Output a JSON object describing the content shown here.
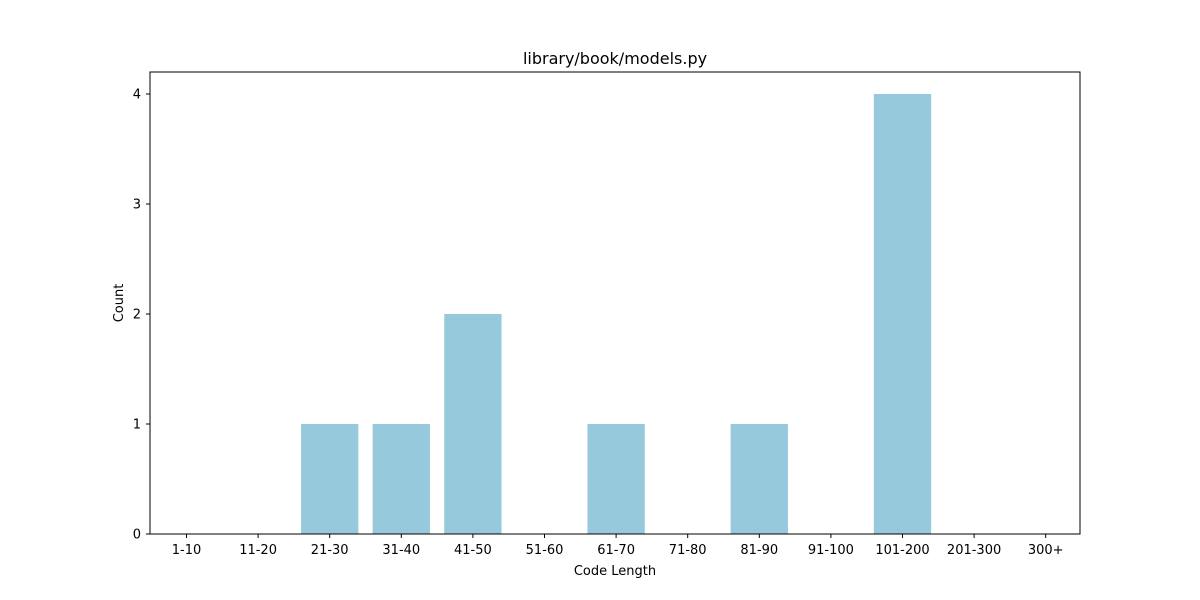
{
  "chart_data": {
    "type": "bar",
    "title": "library/book/models.py",
    "xlabel": "Code Length",
    "ylabel": "Count",
    "categories": [
      "1-10",
      "11-20",
      "21-30",
      "31-40",
      "41-50",
      "51-60",
      "61-70",
      "71-80",
      "81-90",
      "91-100",
      "101-200",
      "201-300",
      "300+"
    ],
    "values": [
      0,
      0,
      1,
      1,
      2,
      0,
      1,
      0,
      1,
      0,
      4,
      0,
      0
    ],
    "ylim": [
      0,
      4.2
    ],
    "yticks": [
      0,
      1,
      2,
      3,
      4
    ],
    "grid": false,
    "bar_color": "#96c9dc"
  }
}
